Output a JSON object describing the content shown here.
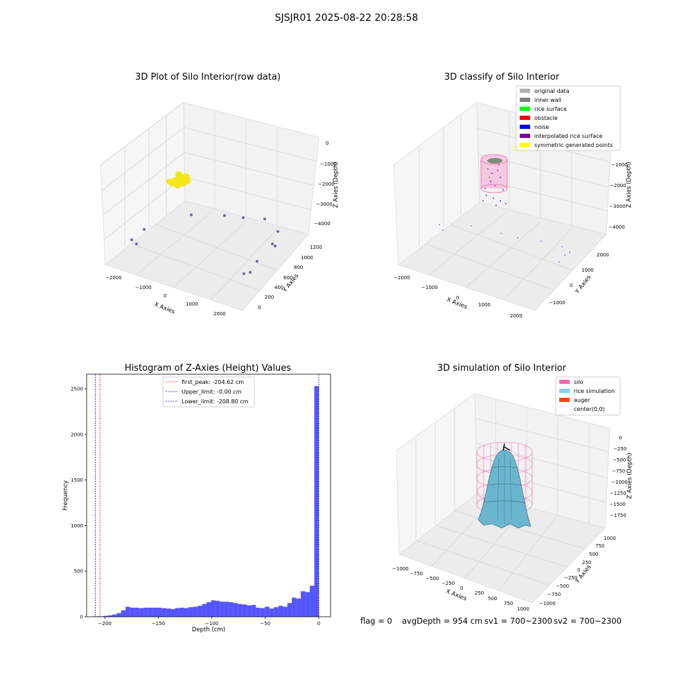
{
  "figure": {
    "title": "SJSJR01 2025-08-22 20:28:58"
  },
  "footer": {
    "flag": "flag = 0",
    "avg_depth": "avgDepth = 954 cm",
    "sv1": "sv1 = 700~2300",
    "sv2": "sv2 = 700~2300"
  },
  "colors": {
    "grid": "#d9d9d9",
    "pane": "#f2f2f2",
    "hist_bar": "#5555ff",
    "silo": "#ff69b4",
    "rice": "#87ceeb",
    "auger": "#ff4500",
    "yellow": "#f2e81a"
  },
  "chart_data": [
    {
      "type": "scatter3d",
      "title": "3D Plot of Silo Interior(row data)",
      "xlabel": "X Axies",
      "ylabel": "Y Axies",
      "zlabel": "Z Axies (Depth)",
      "x_ticks": [
        "−2000",
        "−1000",
        "0",
        "1000",
        "2000"
      ],
      "y_ticks": [
        "0",
        "200",
        "400",
        "600",
        "800",
        "1000",
        "1200"
      ],
      "z_ticks": [
        "0",
        "−1000",
        "−2000",
        "−3000",
        "−4000"
      ]
    },
    {
      "type": "scatter3d",
      "title": "3D classify of Silo Interior",
      "xlabel": "X Axies",
      "ylabel": "Y Axies",
      "zlabel": "Z Axies (Depth)",
      "x_ticks": [
        "−2000",
        "−1000",
        "0",
        "1000",
        "2000"
      ],
      "y_ticks": [
        "−1000",
        "0",
        "1000",
        "2000"
      ],
      "z_ticks": [
        "−1000",
        "−2000",
        "−3000",
        "−4000"
      ],
      "legend": [
        {
          "label": "original data",
          "color": "#b0b0b0"
        },
        {
          "label": "inner wall",
          "color": "#808080"
        },
        {
          "label": "rice surface",
          "color": "#00ff00"
        },
        {
          "label": "obstacle",
          "color": "#ff0000"
        },
        {
          "label": "noise",
          "color": "#0000ff"
        },
        {
          "label": "interpolated rice surface",
          "color": "#800080"
        },
        {
          "label": "symmetric generated points",
          "color": "#ffff00"
        }
      ]
    },
    {
      "type": "bar",
      "title": "Histogram of Z-Axies (Height) Values",
      "xlabel": "Depth (cm)",
      "ylabel": "Frequency",
      "xlim": [
        -217,
        11
      ],
      "ylim": [
        0,
        2660
      ],
      "x_ticks": [
        -200,
        -150,
        -100,
        -50,
        0
      ],
      "x_tick_labels": [
        "−200",
        "−150",
        "−100",
        "−50",
        "0"
      ],
      "y_ticks": [
        0,
        500,
        1000,
        1500,
        2000,
        2500
      ],
      "bin_start": -210,
      "bin_width": 4.2,
      "values": [
        5,
        5,
        10,
        15,
        25,
        40,
        70,
        110,
        100,
        100,
        95,
        100,
        100,
        100,
        100,
        95,
        90,
        85,
        95,
        100,
        95,
        105,
        110,
        120,
        140,
        160,
        180,
        175,
        165,
        165,
        160,
        150,
        140,
        135,
        125,
        130,
        100,
        95,
        110,
        90,
        105,
        120,
        110,
        150,
        210,
        200,
        280,
        270,
        340,
        2530
      ],
      "lines": [
        {
          "label": "first_peak: -204.62 cm",
          "x": -204.62,
          "color": "#ff0000"
        },
        {
          "label": "Upper_limit: -0.00 cm",
          "x": 0,
          "color": "#0000aa"
        },
        {
          "label": "Lower_limit: -208.80 cm",
          "x": -208.8,
          "color": "#0000ff"
        }
      ]
    },
    {
      "type": "surface3d",
      "title": "3D simulation of Silo Interior",
      "xlabel": "X Axies",
      "ylabel": "Y Axies",
      "zlabel": "Z Axies (Depth)",
      "x_ticks": [
        "−1000",
        "−750",
        "−500",
        "−250",
        "0",
        "250",
        "500",
        "750",
        "1000"
      ],
      "y_ticks": [
        "1000",
        "750",
        "500",
        "250",
        "0",
        "−250",
        "−500",
        "−750",
        "−1000"
      ],
      "z_ticks": [
        "0",
        "−250",
        "−500",
        "−750",
        "−1000",
        "−1250",
        "−1500",
        "−1750"
      ],
      "legend": [
        {
          "label": "silo",
          "color": "#ff69b4"
        },
        {
          "label": "rice simulation",
          "color": "#87ceeb"
        },
        {
          "label": "auger",
          "color": "#ff4500"
        },
        {
          "label": "center(0,0)",
          "color": "#ffffff"
        }
      ]
    }
  ]
}
